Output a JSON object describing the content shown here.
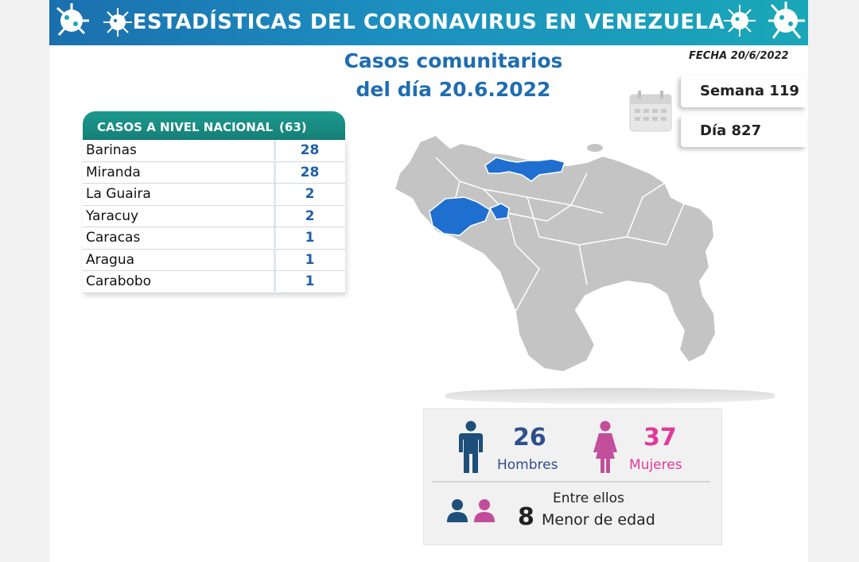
{
  "header": {
    "title": "ESTADÍSTICAS DEL CORONAVIRUS EN VENEZUELA"
  },
  "subtitle": {
    "line1": "Casos comunitarios",
    "line2": "del día 20.6.2022"
  },
  "fecha": "FECHA 20/6/2022",
  "semana": "Semana 119",
  "dia": "Día 827",
  "table": {
    "title": "CASOS A NIVEL NACIONAL",
    "total": "(63)",
    "rows": [
      {
        "name": "Barinas",
        "value": "28"
      },
      {
        "name": "Miranda",
        "value": "28"
      },
      {
        "name": "La Guaira",
        "value": "2"
      },
      {
        "name": "Yaracuy",
        "value": "2"
      },
      {
        "name": "Caracas",
        "value": "1"
      },
      {
        "name": "Aragua",
        "value": "1"
      },
      {
        "name": "Carabobo",
        "value": "1"
      }
    ]
  },
  "stats": {
    "hombres": {
      "value": "26",
      "label": "Hombres"
    },
    "mujeres": {
      "value": "37",
      "label": "Mujeres"
    },
    "entre": "Entre ellos",
    "menores": {
      "value": "8",
      "label": "Menor de edad"
    }
  },
  "colors": {
    "header": "#1b6fae",
    "highlight": "#1f6fd1",
    "map": "#c4c4c4",
    "male": "#1d4f7a",
    "female": "#c24e9b"
  },
  "icons": [
    "virus-icon",
    "calendar-icon",
    "male-icon",
    "female-icon",
    "people-icon"
  ]
}
